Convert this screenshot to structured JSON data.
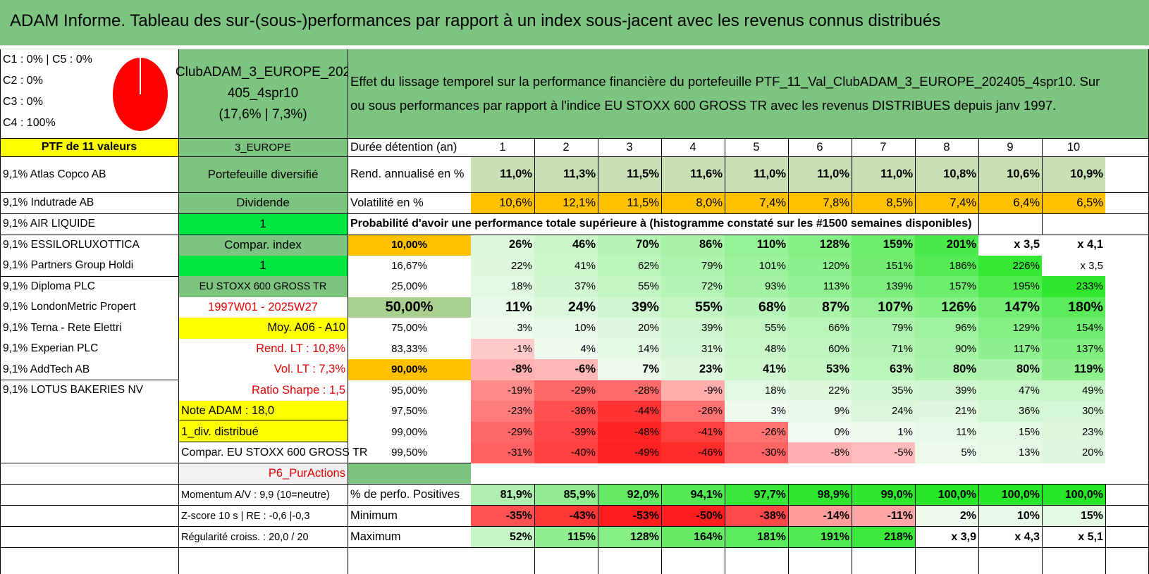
{
  "title": "ADAM Informe. Tableau des sur-(sous-)performances par rapport à un index sous-jacent avec les revenus connus distribués",
  "legend": [
    "C1 : 0% | C5 : 0%",
    "C2 : 0%",
    "C3 : 0%",
    "C4 : 100%"
  ],
  "pie_value_c4": 1.0,
  "portfolio": {
    "name_line1": "ClubADAM_3_EUROPE_202",
    "name_line2": "405_4spr10",
    "name_line3": "(17,6% | 7,3%)"
  },
  "description_line1": "Effet du lissage temporel sur la performance financière du portefeuille PTF_11_Val_ClubADAM_3_EUROPE_202405_4spr10. Sur",
  "description_line2": "ou sous performances par rapport à l'indice EU STOXX 600 GROSS TR avec les revenus DISTRIBUES depuis janv 1997.",
  "ptf_header": "PTF de 11 valeurs",
  "holdings": [
    "9,1% Atlas Copco AB",
    "9,1% Indutrade AB",
    "9,1% AIR LIQUIDE",
    "9,1% ESSILORLUXOTTICA",
    "9,1% Partners Group Holdi",
    "9,1% Diploma PLC",
    "9,1% LondonMetric Propert",
    "9,1% Terna - Rete Elettri",
    "9,1% Experian PLC",
    "9,1% AddTech AB",
    "9,1% LOTUS BAKERIES NV"
  ],
  "info": [
    "3_EUROPE",
    "Portefeuille diversifié",
    "Dividende",
    "1",
    "Compar. index",
    "1",
    "EU STOXX 600 GROSS TR",
    "1997W01 - 2025W27",
    "Moy. A06 - A10",
    "Rend. LT : 10,8%",
    "Vol. LT : 7,3%",
    "Ratio Sharpe : 1,5",
    "Note ADAM : 18,0",
    "1_div. distribué",
    "Compar. EU STOXX 600 GROSS TR",
    "P6_PurActions",
    "Momentum A/V : 9,9 (10=neutre)",
    "Z-score 10 s | RE : -0,6 |-0,3",
    "Régularité croiss. : 20,0 / 20"
  ],
  "header_label": "Durée détention (an)",
  "years": [
    "1",
    "2",
    "3",
    "4",
    "5",
    "6",
    "7",
    "8",
    "9",
    "10"
  ],
  "rend_label": "Rend. annualisé en %",
  "rend": [
    "11,0%",
    "11,3%",
    "11,5%",
    "11,6%",
    "11,0%",
    "11,0%",
    "11,0%",
    "10,8%",
    "10,6%",
    "10,9%"
  ],
  "vol_label": "Volatilité en %",
  "vol": [
    "10,6%",
    "12,1%",
    "11,5%",
    "8,0%",
    "7,4%",
    "7,8%",
    "8,5%",
    "7,4%",
    "6,4%",
    "6,5%"
  ],
  "prob_title": "Probabilité d'avoir une performance totale supérieure à (histogramme constaté sur les #1500 semaines disponibles)",
  "prob_rows": [
    {
      "label": "10,00%",
      "values": [
        "26%",
        "46%",
        "70%",
        "86%",
        "110%",
        "128%",
        "159%",
        "201%",
        "x 3,5",
        "x 4,1"
      ]
    },
    {
      "label": "16,67%",
      "values": [
        "22%",
        "41%",
        "62%",
        "79%",
        "101%",
        "120%",
        "151%",
        "186%",
        "226%",
        "x 3,5"
      ]
    },
    {
      "label": "25,00%",
      "values": [
        "18%",
        "37%",
        "55%",
        "72%",
        "93%",
        "113%",
        "139%",
        "157%",
        "195%",
        "233%"
      ]
    },
    {
      "label": "50,00%",
      "values": [
        "11%",
        "24%",
        "39%",
        "55%",
        "68%",
        "87%",
        "107%",
        "126%",
        "147%",
        "180%"
      ]
    },
    {
      "label": "75,00%",
      "values": [
        "3%",
        "10%",
        "20%",
        "39%",
        "55%",
        "66%",
        "79%",
        "96%",
        "129%",
        "154%"
      ]
    },
    {
      "label": "83,33%",
      "values": [
        "-1%",
        "4%",
        "14%",
        "31%",
        "48%",
        "60%",
        "71%",
        "90%",
        "117%",
        "137%"
      ]
    },
    {
      "label": "90,00%",
      "values": [
        "-8%",
        "-6%",
        "7%",
        "23%",
        "41%",
        "53%",
        "63%",
        "80%",
        "80%",
        "119%"
      ]
    },
    {
      "label": "95,00%",
      "values": [
        "-19%",
        "-29%",
        "-28%",
        "-9%",
        "18%",
        "22%",
        "35%",
        "39%",
        "47%",
        "49%"
      ]
    },
    {
      "label": "97,50%",
      "values": [
        "-23%",
        "-36%",
        "-44%",
        "-26%",
        "3%",
        "9%",
        "24%",
        "21%",
        "36%",
        "30%"
      ]
    },
    {
      "label": "99,00%",
      "values": [
        "-29%",
        "-39%",
        "-48%",
        "-41%",
        "-26%",
        "0%",
        "1%",
        "11%",
        "15%",
        "23%"
      ]
    },
    {
      "label": "99,50%",
      "values": [
        "-31%",
        "-40%",
        "-49%",
        "-46%",
        "-30%",
        "-8%",
        "-5%",
        "5%",
        "13%",
        "20%"
      ]
    }
  ],
  "stats": [
    {
      "label": "% de perfo. Positives",
      "values": [
        "81,9%",
        "85,9%",
        "92,0%",
        "94,1%",
        "97,7%",
        "98,9%",
        "99,0%",
        "100,0%",
        "100,0%",
        "100,0%"
      ]
    },
    {
      "label": "Minimum",
      "values": [
        "-35%",
        "-43%",
        "-53%",
        "-50%",
        "-38%",
        "-14%",
        "-11%",
        "2%",
        "10%",
        "15%"
      ]
    },
    {
      "label": "Maximum",
      "values": [
        "52%",
        "115%",
        "128%",
        "164%",
        "181%",
        "191%",
        "218%",
        "x 3,9",
        "x 4,3",
        "x 5,1"
      ]
    }
  ],
  "colors": {
    "title_bg": "#7cc47f",
    "mid_green": "#7cc47f",
    "yellow": "#ffff00",
    "bright_green": "#00e640",
    "orange": "#ffc000",
    "light_sage": "#c9dfb4",
    "sage_highlight": "#a9d08e",
    "grey": "#f2f2f2",
    "red_text": "#e00000"
  }
}
